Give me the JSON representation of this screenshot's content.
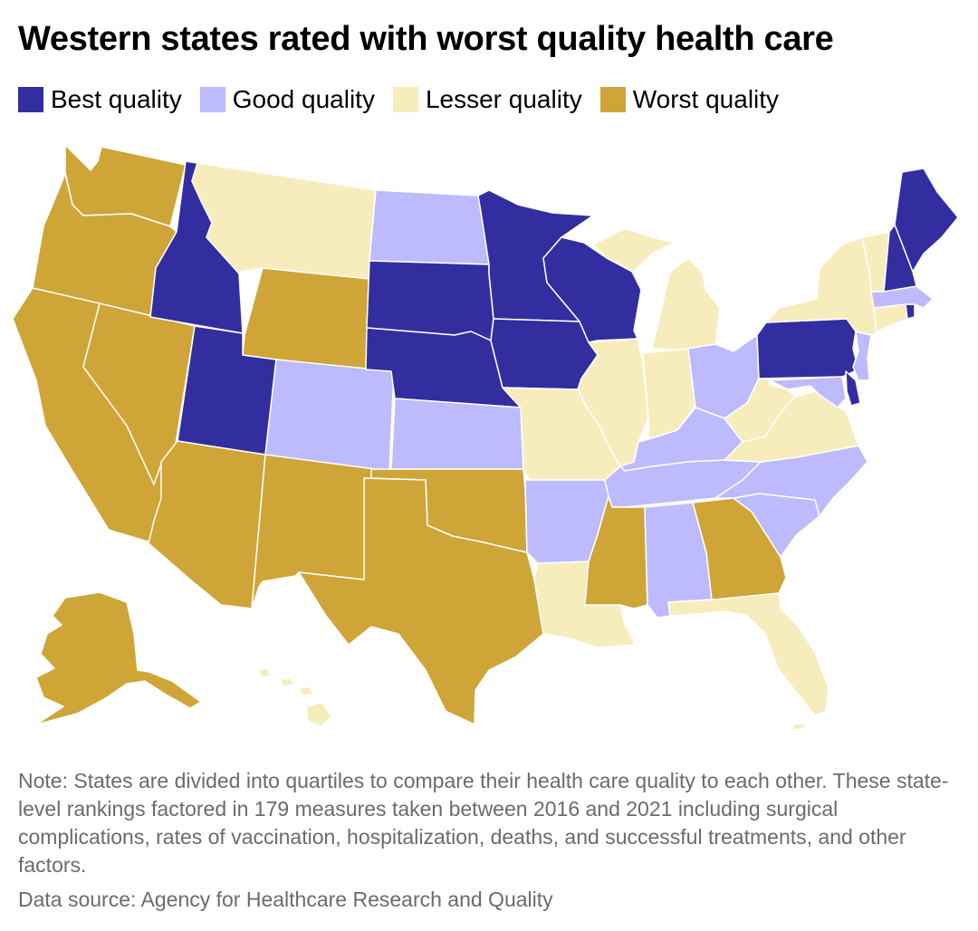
{
  "title": "Western states rated with worst quality health care",
  "legend": [
    {
      "label": "Best quality",
      "color": "#322ea0"
    },
    {
      "label": "Good quality",
      "color": "#bdbafd"
    },
    {
      "label": "Lesser quality",
      "color": "#f7ecbc"
    },
    {
      "label": "Worst quality",
      "color": "#cea536"
    }
  ],
  "states": {
    "WA": "Worst quality",
    "OR": "Worst quality",
    "CA": "Worst quality",
    "NV": "Worst quality",
    "ID": "Best quality",
    "MT": "Lesser quality",
    "WY": "Worst quality",
    "UT": "Best quality",
    "AZ": "Worst quality",
    "NM": "Worst quality",
    "CO": "Good quality",
    "ND": "Good quality",
    "SD": "Best quality",
    "NE": "Best quality",
    "KS": "Good quality",
    "OK": "Worst quality",
    "TX": "Worst quality",
    "MN": "Best quality",
    "IA": "Best quality",
    "MO": "Lesser quality",
    "AR": "Good quality",
    "LA": "Lesser quality",
    "WI": "Best quality",
    "IL": "Lesser quality",
    "MI": "Lesser quality",
    "IN": "Lesser quality",
    "OH": "Good quality",
    "KY": "Good quality",
    "TN": "Good quality",
    "MS": "Worst quality",
    "AL": "Good quality",
    "GA": "Worst quality",
    "FL": "Lesser quality",
    "SC": "Good quality",
    "NC": "Good quality",
    "VA": "Lesser quality",
    "WV": "Lesser quality",
    "MD": "Good quality",
    "DE": "Best quality",
    "NJ": "Good quality",
    "PA": "Best quality",
    "NY": "Lesser quality",
    "CT": "Lesser quality",
    "RI": "Best quality",
    "MA": "Good quality",
    "VT": "Lesser quality",
    "NH": "Best quality",
    "ME": "Best quality",
    "AK": "Worst quality",
    "HI": "Lesser quality"
  },
  "note": "Note: States are divided into quartiles to compare their health care quality to each other. These state-level rankings factored in 179 measures taken between 2016 and 2021 including surgical complications, rates of vaccination, hospitalization, deaths, and successful treatments, and other factors.",
  "source": "Data source: Agency for Healthcare Research and Quality"
}
